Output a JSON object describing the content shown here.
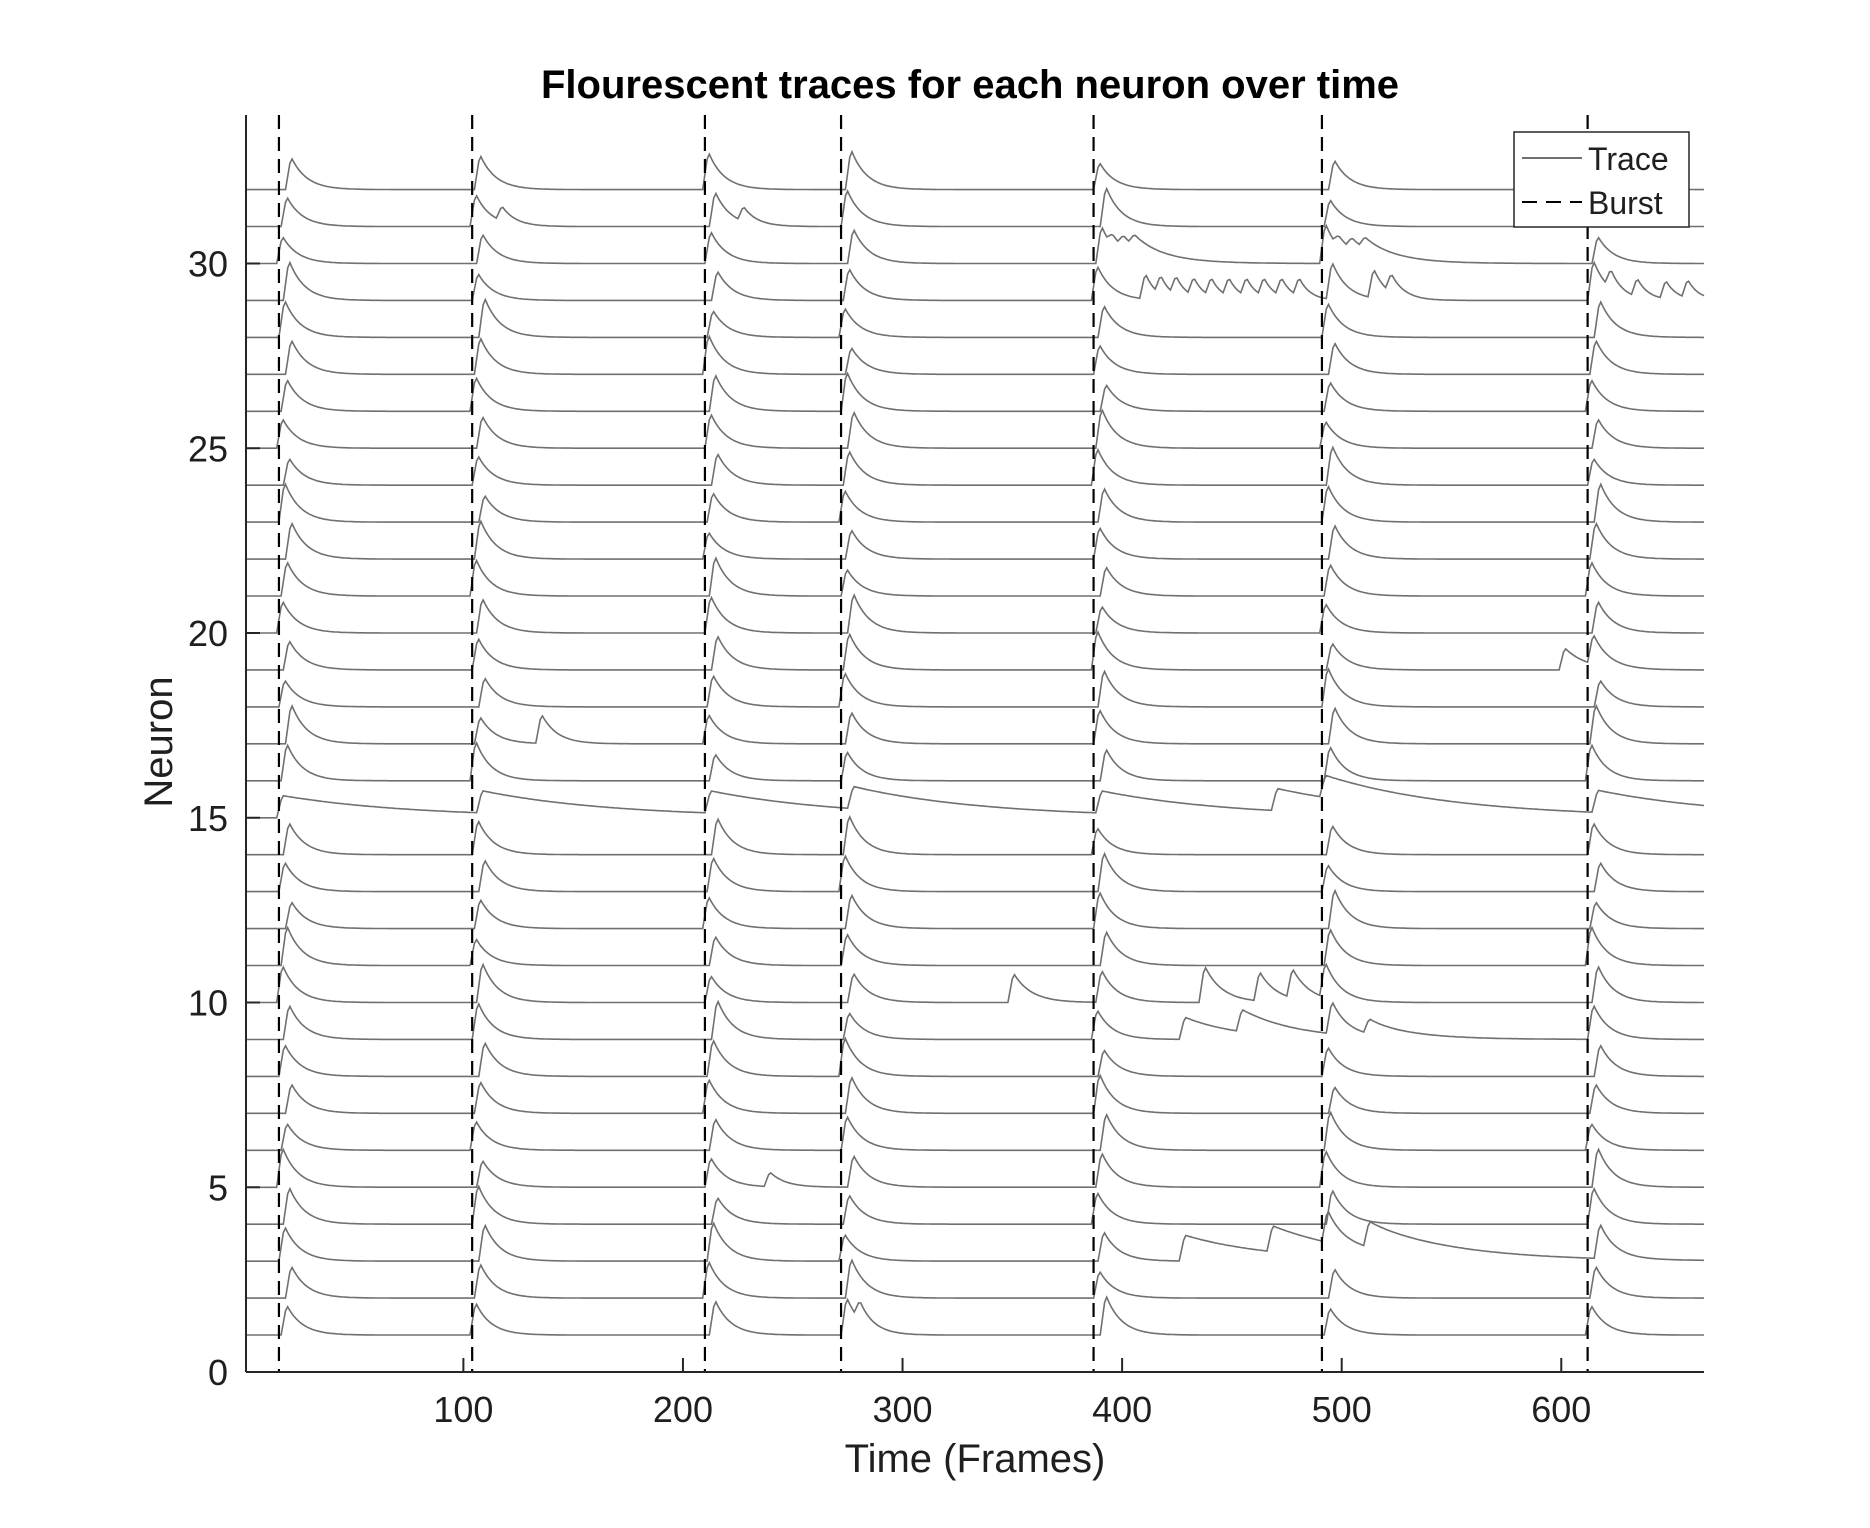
{
  "chart_data": {
    "type": "line",
    "title": "Flourescent traces for each neuron over time",
    "xlabel": "Time (Frames)",
    "ylabel": "Neuron",
    "xlim": [
      1,
      665
    ],
    "ylim": [
      0,
      34
    ],
    "xticks": [
      100,
      200,
      300,
      400,
      500,
      600
    ],
    "yticks": [
      0,
      5,
      10,
      15,
      20,
      25,
      30
    ],
    "grid": false,
    "legend_position": "top-right",
    "legend": [
      {
        "label": "Trace",
        "style": "solid"
      },
      {
        "label": "Burst",
        "style": "dashed"
      }
    ],
    "colors": {
      "trace": "#707070",
      "burst": "#000000",
      "axis": "#262626"
    },
    "neuron_count": 32,
    "burst_frames": [
      16,
      104,
      210,
      272,
      387,
      491,
      612
    ],
    "spike_amplitude": 1.0,
    "decay_tau_frames": 7,
    "extra_events": [
      {
        "neuron": 15,
        "frame": 468,
        "amplitude": 0.6,
        "tau": 60
      },
      {
        "neuron": 10,
        "frame": 348,
        "amplitude": 0.8,
        "tau": 8
      },
      {
        "neuron": 10,
        "frame": 435,
        "amplitude": 1.0,
        "tau": 8
      },
      {
        "neuron": 10,
        "frame": 460,
        "amplitude": 0.8,
        "tau": 8
      },
      {
        "neuron": 10,
        "frame": 475,
        "amplitude": 0.8,
        "tau": 8
      },
      {
        "neuron": 9,
        "frame": 426,
        "amplitude": 0.6,
        "tau": 25
      },
      {
        "neuron": 9,
        "frame": 452,
        "amplitude": 0.6,
        "tau": 25
      },
      {
        "neuron": 9,
        "frame": 510,
        "amplitude": 0.4,
        "tau": 20
      },
      {
        "neuron": 3,
        "frame": 426,
        "amplitude": 0.7,
        "tau": 40
      },
      {
        "neuron": 3,
        "frame": 466,
        "amplitude": 0.7,
        "tau": 40
      },
      {
        "neuron": 3,
        "frame": 510,
        "amplitude": 0.7,
        "tau": 40
      },
      {
        "neuron": 5,
        "frame": 237,
        "amplitude": 0.4,
        "tau": 7
      },
      {
        "neuron": 17,
        "frame": 133,
        "amplitude": 0.8,
        "tau": 7
      },
      {
        "neuron": 19,
        "frame": 599,
        "amplitude": 0.6,
        "tau": 10
      },
      {
        "neuron": 1,
        "frame": 278,
        "amplitude": 0.5,
        "tau": 6
      },
      {
        "neuron": 29,
        "frame": 408,
        "amplitude": 0.7,
        "tau": 5
      },
      {
        "neuron": 29,
        "frame": 415,
        "amplitude": 0.5,
        "tau": 5
      },
      {
        "neuron": 29,
        "frame": 422,
        "amplitude": 0.5,
        "tau": 5
      },
      {
        "neuron": 29,
        "frame": 430,
        "amplitude": 0.5,
        "tau": 5
      },
      {
        "neuron": 29,
        "frame": 438,
        "amplitude": 0.5,
        "tau": 5
      },
      {
        "neuron": 29,
        "frame": 446,
        "amplitude": 0.5,
        "tau": 5
      },
      {
        "neuron": 29,
        "frame": 454,
        "amplitude": 0.5,
        "tau": 5
      },
      {
        "neuron": 29,
        "frame": 462,
        "amplitude": 0.5,
        "tau": 5
      },
      {
        "neuron": 29,
        "frame": 470,
        "amplitude": 0.5,
        "tau": 5
      },
      {
        "neuron": 29,
        "frame": 478,
        "amplitude": 0.5,
        "tau": 5
      },
      {
        "neuron": 29,
        "frame": 512,
        "amplitude": 0.8,
        "tau": 6
      },
      {
        "neuron": 29,
        "frame": 520,
        "amplitude": 0.5,
        "tau": 6
      },
      {
        "neuron": 29,
        "frame": 620,
        "amplitude": 0.5,
        "tau": 5
      },
      {
        "neuron": 29,
        "frame": 632,
        "amplitude": 0.5,
        "tau": 5
      },
      {
        "neuron": 29,
        "frame": 645,
        "amplitude": 0.5,
        "tau": 5
      },
      {
        "neuron": 29,
        "frame": 655,
        "amplitude": 0.5,
        "tau": 5
      },
      {
        "neuron": 30,
        "frame": 393,
        "amplitude": 0.3,
        "tau": 15
      },
      {
        "neuron": 30,
        "frame": 398,
        "amplitude": 0.3,
        "tau": 15
      },
      {
        "neuron": 30,
        "frame": 403,
        "amplitude": 0.3,
        "tau": 15
      },
      {
        "neuron": 30,
        "frame": 496,
        "amplitude": 0.3,
        "tau": 15
      },
      {
        "neuron": 30,
        "frame": 502,
        "amplitude": 0.3,
        "tau": 15
      },
      {
        "neuron": 30,
        "frame": 508,
        "amplitude": 0.3,
        "tau": 15
      },
      {
        "neuron": 31,
        "frame": 115,
        "amplitude": 0.4,
        "tau": 6
      },
      {
        "neuron": 31,
        "frame": 225,
        "amplitude": 0.4,
        "tau": 6
      }
    ]
  }
}
